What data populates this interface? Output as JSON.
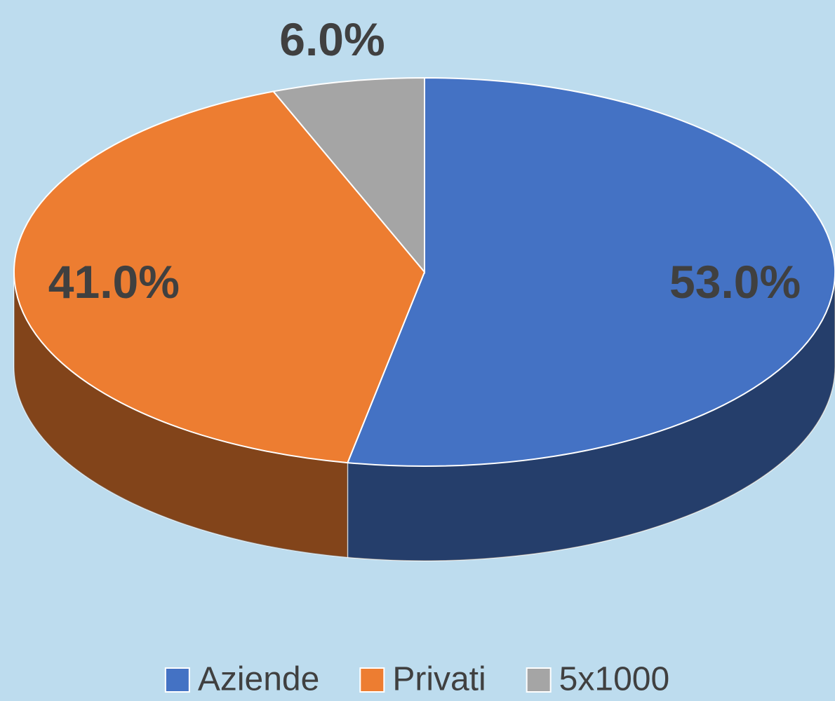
{
  "chart_data": {
    "type": "pie",
    "categories": [
      "Aziende",
      "Privati",
      "5x1000"
    ],
    "values": [
      53,
      41,
      6
    ],
    "value_labels": [
      "53.0%",
      "41.0%",
      "6.0%"
    ],
    "colors": [
      "#4472c4",
      "#ed7d31",
      "#a5a5a5"
    ],
    "legend": "bottom"
  }
}
